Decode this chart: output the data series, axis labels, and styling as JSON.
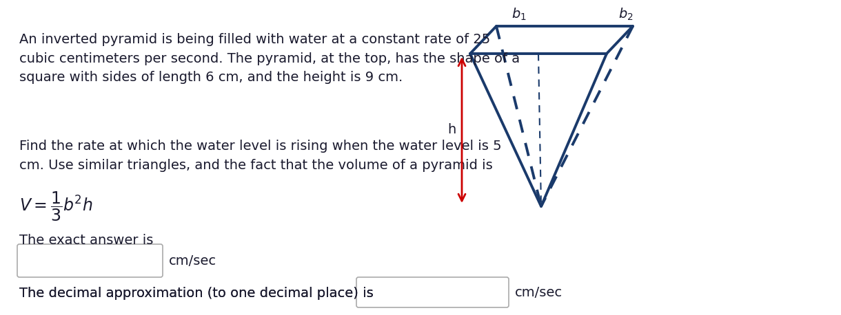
{
  "bg_color": "#ffffff",
  "text_color": "#1a1a2e",
  "pyramid_color": "#1a3a6b",
  "arrow_color": "#cc0000",
  "text_lines_1": "An inverted pyramid is being filled with water at a constant rate of 25\ncubic centimeters per second. The pyramid, at the top, has the shape of a\nsquare with sides of length 6 cm, and the height is 9 cm.",
  "text_lines_2": "Find the rate at which the water level is rising when the water level is 5\ncm. Use similar triangles, and the fact that the volume of a pyramid is",
  "formula": "$V = \\dfrac{1}{3}b^2h$",
  "label_exact": "The exact answer is",
  "label_decimal": "The decimal approximation (to one decimal place) is",
  "unit": "cm/sec",
  "b1_label": "$b_1$",
  "b2_label": "$b_2$",
  "h_label": "h",
  "fontsize_main": 14,
  "fontsize_formula": 17
}
